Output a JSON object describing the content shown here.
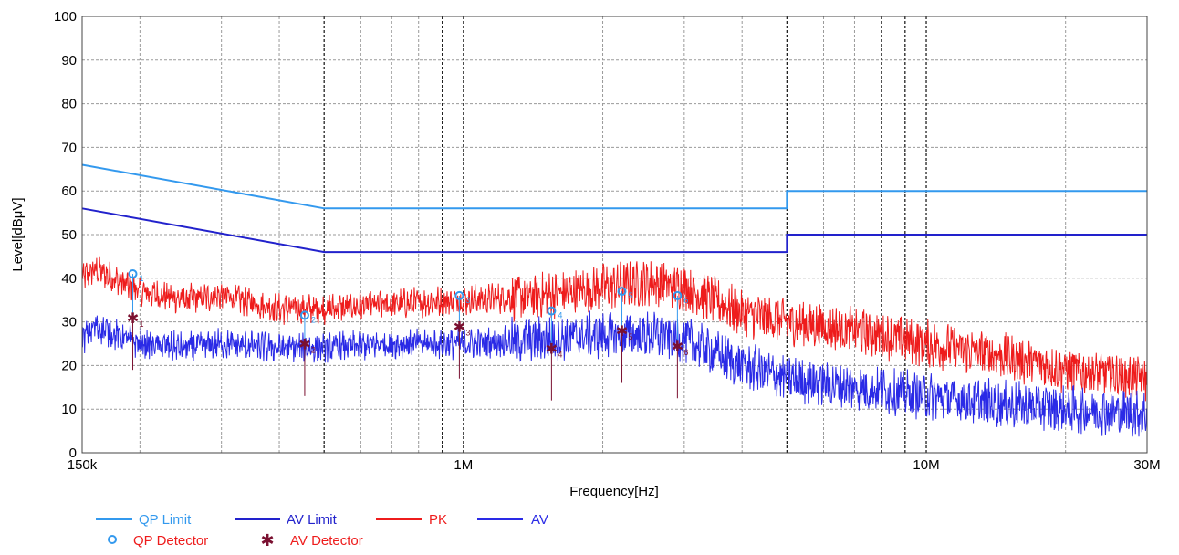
{
  "chart_data": {
    "type": "line",
    "title": "",
    "xlabel": "Frequency[Hz]",
    "ylabel": "Level[dBμV]",
    "x_scale": "log",
    "xlim": [
      150000,
      30000000
    ],
    "ylim": [
      0,
      100
    ],
    "grid": true,
    "legend_position": "bottom-left",
    "x_tick_labels": [
      {
        "value": 150000,
        "label": "150k"
      },
      {
        "value": 1000000,
        "label": "1M"
      },
      {
        "value": 10000000,
        "label": "10M"
      },
      {
        "value": 30000000,
        "label": "30M"
      }
    ],
    "y_ticks": [
      0,
      10,
      20,
      30,
      40,
      50,
      60,
      70,
      80,
      90,
      100
    ],
    "series": [
      {
        "name": "QP Limit",
        "color": "#3399ee",
        "style": "step",
        "x": [
          150000,
          500000,
          500000,
          5000000,
          5000000,
          30000000
        ],
        "y": [
          66,
          56,
          56,
          56,
          60,
          60
        ]
      },
      {
        "name": "AV Limit",
        "color": "#2222cc",
        "style": "step",
        "x": [
          150000,
          500000,
          500000,
          5000000,
          5000000,
          30000000
        ],
        "y": [
          56,
          46,
          46,
          46,
          50,
          50
        ]
      },
      {
        "name": "PK",
        "color": "#ee1c1c",
        "style": "noise",
        "x": [
          150000,
          160000,
          200000,
          250000,
          300000,
          400000,
          500000,
          700000,
          1000000,
          1500000,
          2000000,
          2500000,
          3000000,
          4000000,
          5000000,
          7000000,
          10000000,
          15000000,
          20000000,
          30000000
        ],
        "y": [
          40,
          42,
          37,
          35,
          36,
          33,
          33,
          34,
          35,
          36,
          38,
          39,
          38,
          32,
          30,
          28,
          25,
          22,
          19,
          17
        ]
      },
      {
        "name": "AV",
        "color": "#2a2ae6",
        "style": "noise",
        "x": [
          150000,
          160000,
          200000,
          250000,
          300000,
          400000,
          500000,
          700000,
          1000000,
          1500000,
          2000000,
          2500000,
          3000000,
          4000000,
          5000000,
          7000000,
          10000000,
          15000000,
          20000000,
          30000000
        ],
        "y": [
          26,
          29,
          25,
          24,
          25,
          24,
          24,
          25,
          25,
          26,
          27,
          27,
          26,
          20,
          17,
          15,
          13,
          11,
          10,
          9
        ]
      }
    ],
    "markers": [
      {
        "name": "QP Detector",
        "color": "#3399ee",
        "points": [
          {
            "label": "1",
            "x": 193000,
            "y": 41
          },
          {
            "label": "2",
            "x": 454000,
            "y": 31.5
          },
          {
            "label": "3",
            "x": 980000,
            "y": 36
          },
          {
            "label": "4",
            "x": 1550000,
            "y": 32.5
          },
          {
            "label": "5",
            "x": 2200000,
            "y": 37
          },
          {
            "label": "6",
            "x": 2900000,
            "y": 36
          }
        ]
      },
      {
        "name": "AV Detector",
        "color": "#7a1030",
        "points": [
          {
            "label": "1",
            "x": 193000,
            "y": 31
          },
          {
            "label": "2",
            "x": 454000,
            "y": 25
          },
          {
            "label": "3",
            "x": 980000,
            "y": 29
          },
          {
            "label": "4",
            "x": 1550000,
            "y": 24
          },
          {
            "label": "5",
            "x": 2200000,
            "y": 28
          },
          {
            "label": "6",
            "x": 2900000,
            "y": 24.5
          }
        ]
      }
    ]
  },
  "legend": {
    "qp_limit": "QP Limit",
    "av_limit": "AV Limit",
    "pk": "PK",
    "av": "AV",
    "qp_detector": "QP Detector",
    "av_detector": "AV Detector"
  }
}
